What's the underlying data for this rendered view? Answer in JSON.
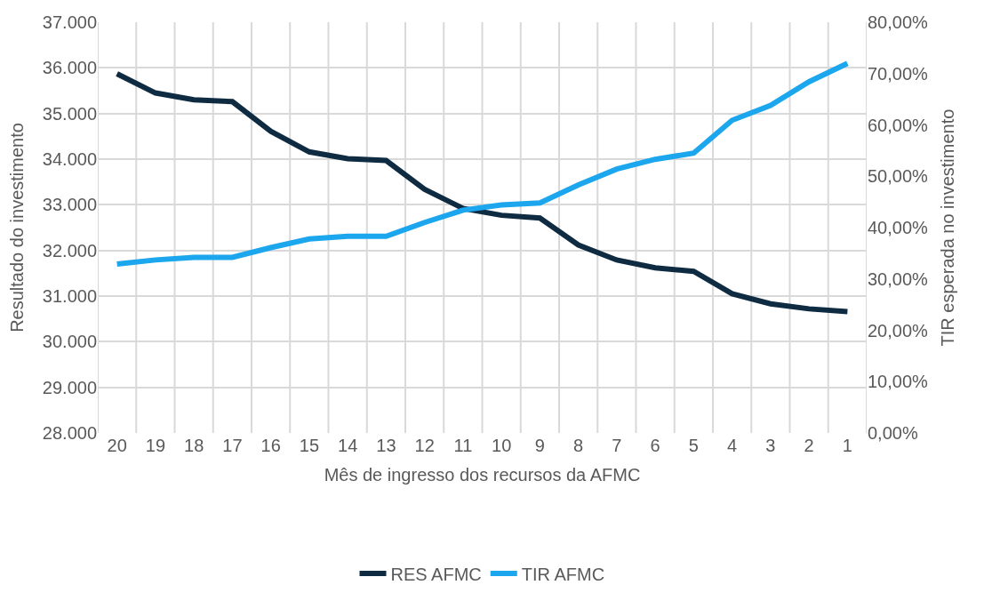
{
  "chart_data": {
    "type": "line",
    "xlabel": "Mês de ingresso dos recursos da AFMC",
    "ylabel": "Resultado do investimento",
    "y2label": "TIR esperada no investimento",
    "categories": [
      "20",
      "19",
      "18",
      "17",
      "16",
      "15",
      "14",
      "13",
      "12",
      "11",
      "10",
      "9",
      "8",
      "7",
      "6",
      "5",
      "4",
      "3",
      "2",
      "1"
    ],
    "series": [
      {
        "name": "RES AFMC",
        "color": "#0e2b42",
        "values": [
          35870,
          35450,
          35300,
          35260,
          34610,
          34160,
          34010,
          33970,
          33340,
          32920,
          32770,
          32710,
          32120,
          31790,
          31620,
          31540,
          31050,
          30830,
          30720,
          30660
        ]
      },
      {
        "name": "TIR AFMC",
        "color": "#1ba6ee",
        "axis": "y2",
        "values": [
          32.9,
          33.7,
          34.2,
          34.2,
          36.1,
          37.8,
          38.3,
          38.3,
          41.0,
          43.4,
          44.4,
          44.8,
          48.3,
          51.4,
          53.3,
          54.5,
          60.9,
          63.8,
          68.4,
          72.0
        ]
      }
    ],
    "ylim": [
      28000,
      37000
    ],
    "yticks": [
      {
        "value": 28000,
        "label": "28.000"
      },
      {
        "value": 29000,
        "label": "29.000"
      },
      {
        "value": 30000,
        "label": "30.000"
      },
      {
        "value": 31000,
        "label": "31.000"
      },
      {
        "value": 32000,
        "label": "32.000"
      },
      {
        "value": 33000,
        "label": "33.000"
      },
      {
        "value": 34000,
        "label": "34.000"
      },
      {
        "value": 35000,
        "label": "35.000"
      },
      {
        "value": 36000,
        "label": "36.000"
      },
      {
        "value": 37000,
        "label": "37.000"
      }
    ],
    "y2lim": [
      0,
      80
    ],
    "y2ticks": [
      {
        "value": 0,
        "label": "0,00%"
      },
      {
        "value": 10,
        "label": "10,00%"
      },
      {
        "value": 20,
        "label": "20,00%"
      },
      {
        "value": 30,
        "label": "30,00%"
      },
      {
        "value": 40,
        "label": "40,00%"
      },
      {
        "value": 50,
        "label": "50,00%"
      },
      {
        "value": 60,
        "label": "60,00%"
      },
      {
        "value": 70,
        "label": "70,00%"
      },
      {
        "value": 80,
        "label": "80,00%"
      }
    ],
    "grid": true,
    "legend": "bottom",
    "marker": "none",
    "line_style": "solid"
  }
}
